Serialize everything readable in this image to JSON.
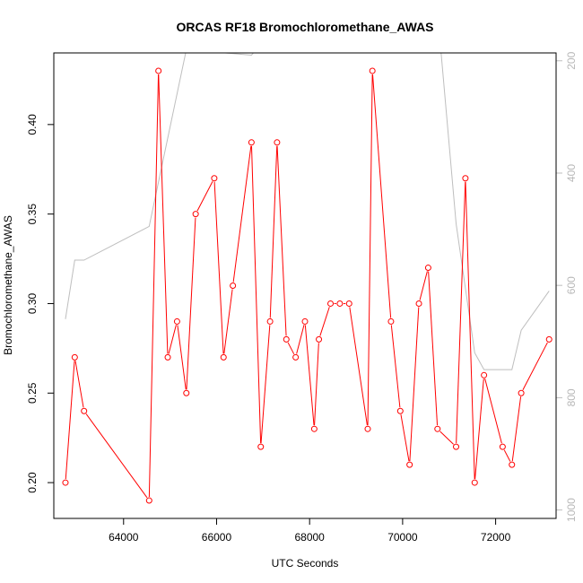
{
  "chart_data": {
    "type": "line",
    "title": "ORCAS RF18 Bromochloromethane_AWAS",
    "xlabel": "UTC Seconds",
    "ylabel": "Bromochloromethane_AWAS",
    "xlim": [
      62500,
      73300
    ],
    "ylim": [
      0.18,
      0.44
    ],
    "x_ticks": [
      64000,
      66000,
      68000,
      70000,
      72000
    ],
    "y_ticks": [
      0.2,
      0.25,
      0.3,
      0.35,
      0.4
    ],
    "y2_ticks": [
      200,
      400,
      600,
      800,
      1000
    ],
    "y2_range_bottom_top": [
      1015,
      186
    ],
    "colors": {
      "primary": "#ff0000",
      "secondary": "#bebebe"
    },
    "series": [
      {
        "axis": "left",
        "style": "line+points",
        "x": [
          62750,
          62950,
          63150,
          64550,
          64750,
          64950,
          65150,
          65350,
          65550,
          65950,
          66150,
          66350,
          66750,
          66950,
          67150,
          67300,
          67500,
          67700,
          67900,
          68100,
          68200,
          68450,
          68650,
          68850,
          69250,
          69350,
          69750,
          69950,
          70150,
          70350,
          70550,
          70750,
          71150,
          71350,
          71550,
          71750,
          72150,
          72350,
          72550,
          73150
        ],
        "y": [
          0.2,
          0.27,
          0.24,
          0.19,
          0.43,
          0.27,
          0.29,
          0.25,
          0.35,
          0.37,
          0.27,
          0.31,
          0.39,
          0.22,
          0.29,
          0.39,
          0.28,
          0.27,
          0.29,
          0.23,
          0.28,
          0.3,
          0.3,
          0.3,
          0.23,
          0.43,
          0.29,
          0.24,
          0.21,
          0.3,
          0.32,
          0.23,
          0.22,
          0.37,
          0.2,
          0.26,
          0.22,
          0.21,
          0.25,
          0.28
        ]
      },
      {
        "axis": "right",
        "style": "line",
        "x": [
          62750,
          62950,
          63150,
          64550,
          65350,
          66750,
          66850,
          67100,
          68800,
          68850,
          70800,
          71150,
          71550,
          71750,
          72350,
          72550,
          73150
        ],
        "y": [
          660,
          555,
          555,
          495,
          180,
          190,
          180,
          165,
          180,
          175,
          160,
          490,
          720,
          750,
          750,
          680,
          610
        ]
      }
    ]
  }
}
